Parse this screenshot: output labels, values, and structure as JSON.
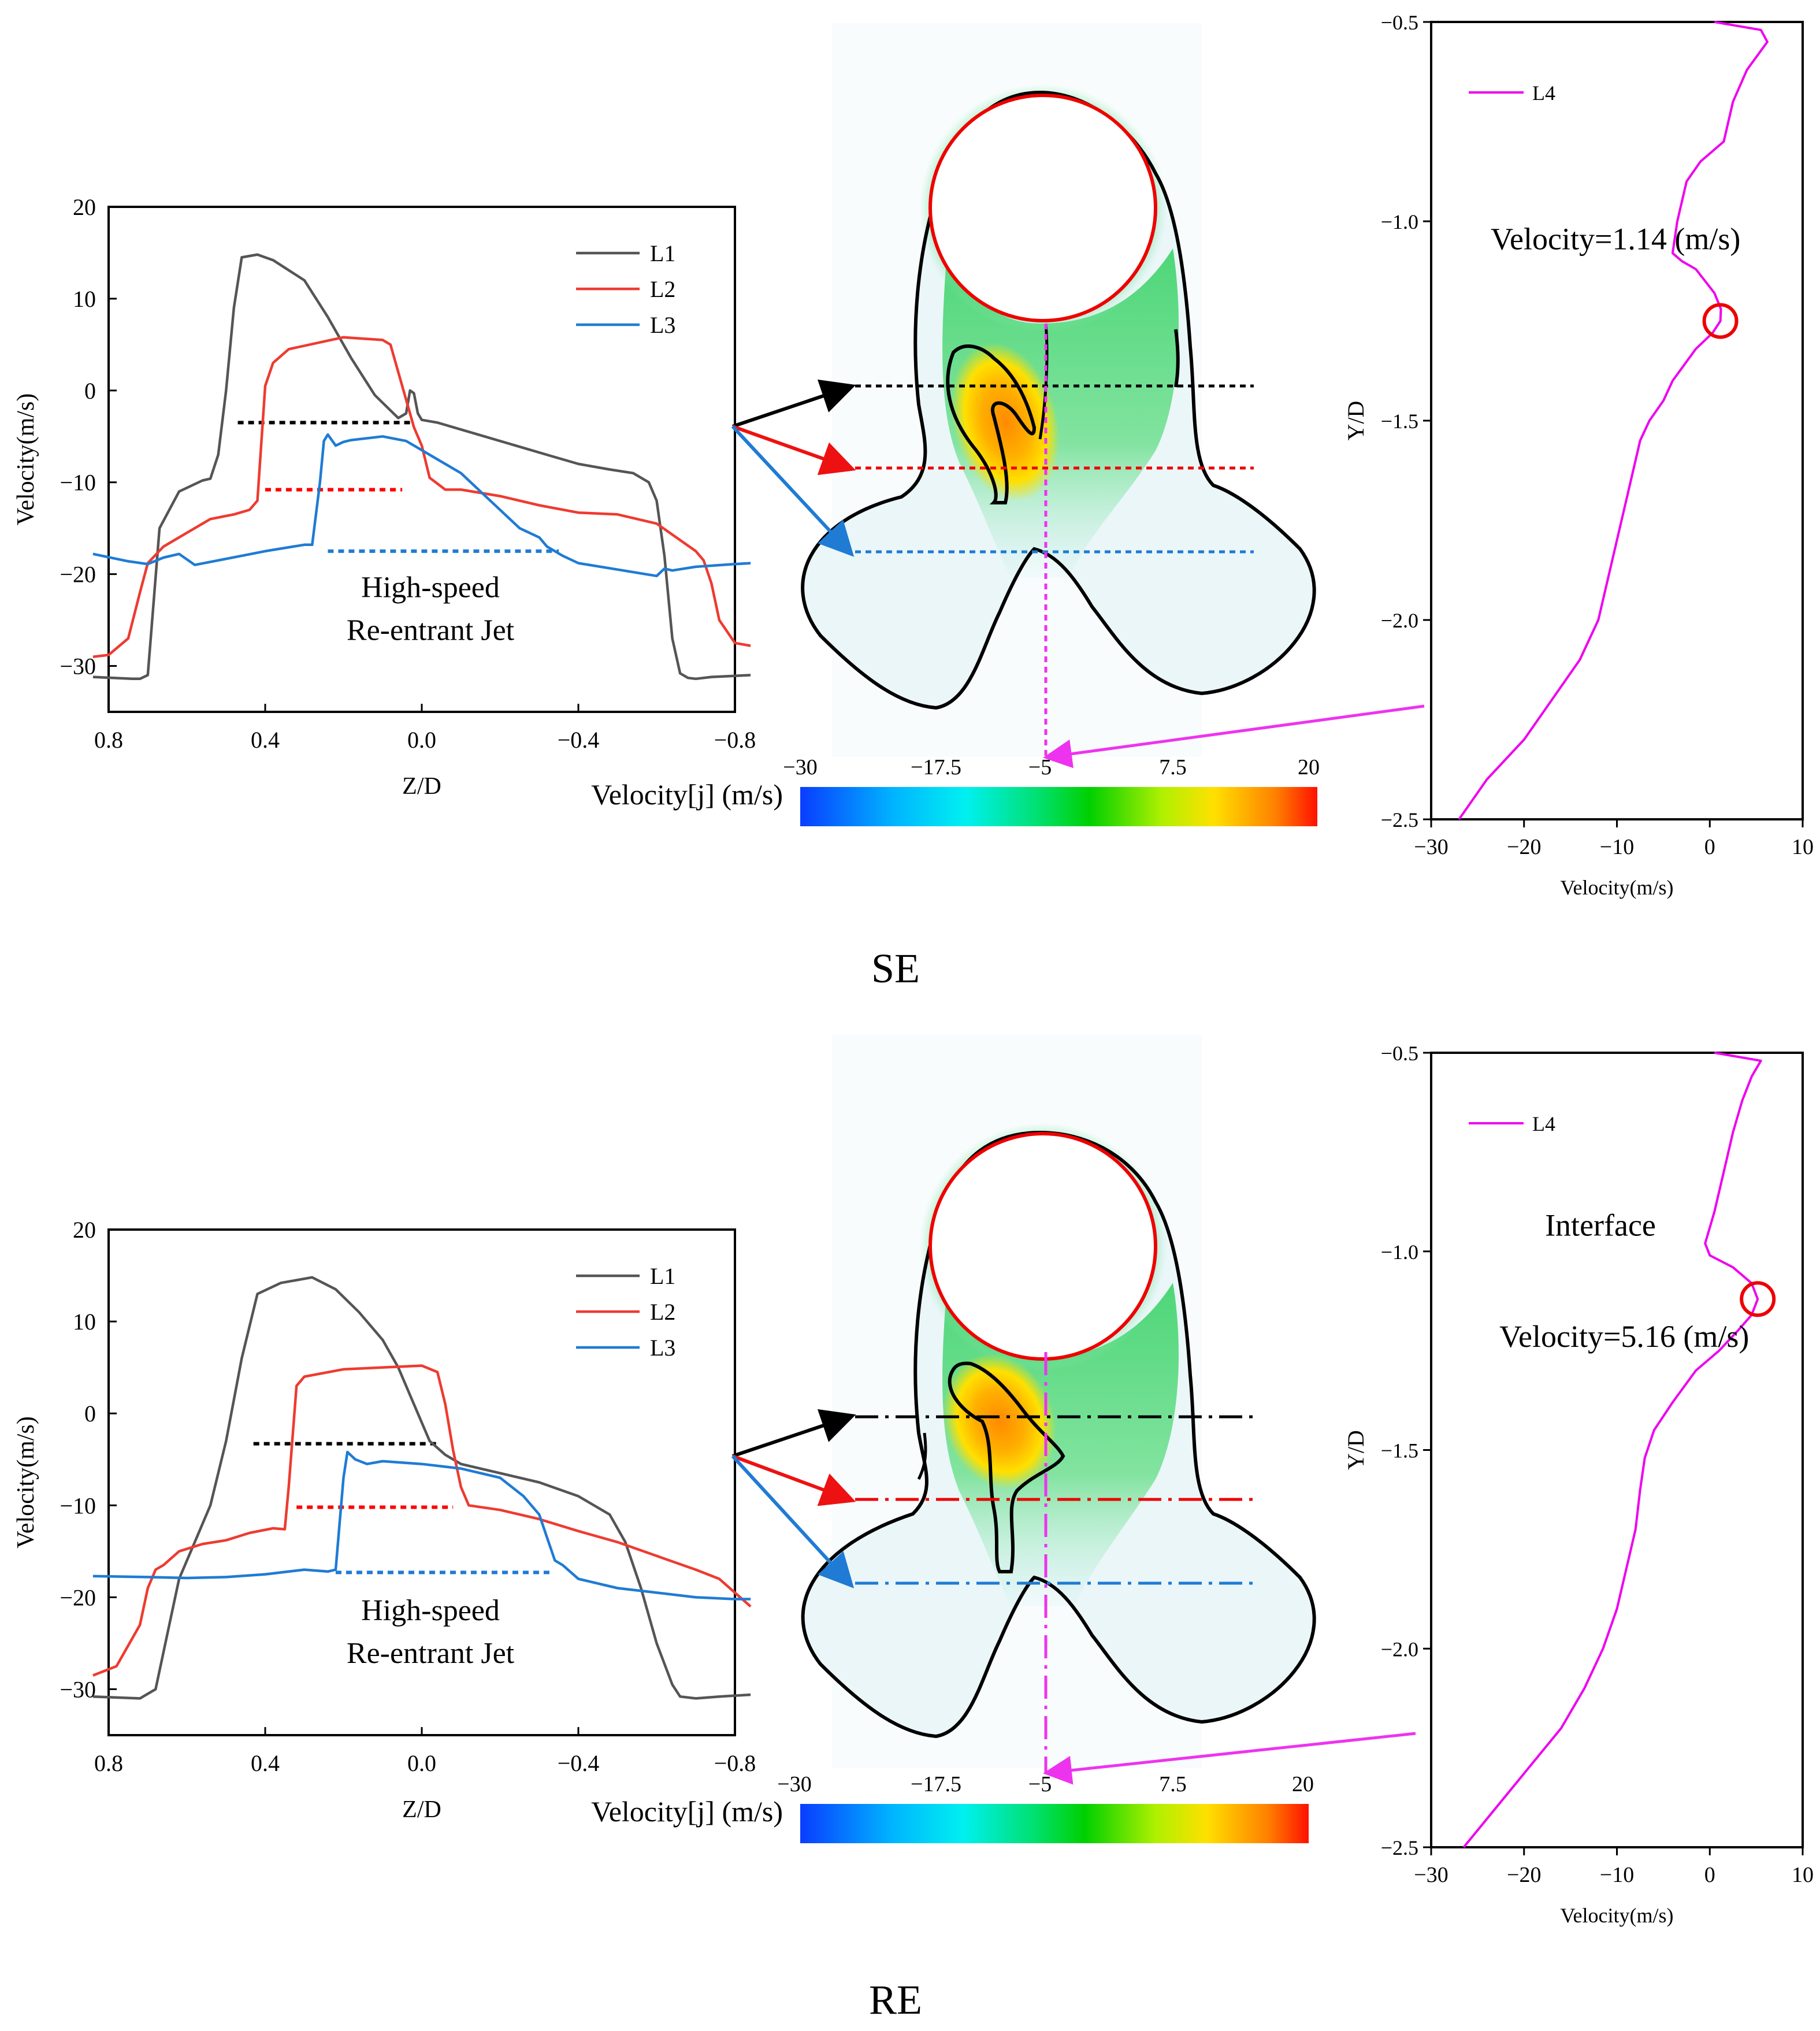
{
  "panels": [
    {
      "label": "SE",
      "left_chart": {
        "type": "line",
        "xlabel": "Z/D",
        "ylabel": "Velocity(m/s)",
        "xlim": [
          0.8,
          -0.8
        ],
        "ylim": [
          -35,
          20
        ],
        "xticks": [
          0.8,
          0.4,
          0.0,
          -0.4,
          -0.8
        ],
        "xtick_labels": [
          "0.8",
          "0.4",
          "0.0",
          "−0.4",
          "−0.8"
        ],
        "yticks": [
          20,
          10,
          0,
          -10,
          -20,
          -30
        ],
        "ytick_labels": [
          "20",
          "10",
          "0",
          "−10",
          "−20",
          "−30"
        ],
        "annotation": [
          "High-speed",
          "Re-entrant  Jet"
        ],
        "legend": [
          "L1",
          "L2",
          "L3"
        ],
        "series": [
          {
            "name": "L1",
            "color": "#555555",
            "x": [
              0.84,
              0.74,
              0.72,
              0.7,
              0.67,
              0.62,
              0.56,
              0.54,
              0.52,
              0.5,
              0.48,
              0.46,
              0.42,
              0.38,
              0.3,
              0.24,
              0.18,
              0.12,
              0.06,
              0.04,
              0.03,
              0.02,
              0.01,
              0.0,
              -0.04,
              -0.12,
              -0.24,
              -0.32,
              -0.4,
              -0.48,
              -0.54,
              -0.58,
              -0.6,
              -0.62,
              -0.64,
              -0.66,
              -0.68,
              -0.7,
              -0.74,
              -0.84
            ],
            "y": [
              -31.2,
              -31.4,
              -31.4,
              -31.0,
              -15.0,
              -11.0,
              -9.8,
              -9.6,
              -7.0,
              0.0,
              9.0,
              14.5,
              14.8,
              14.2,
              12.0,
              8.0,
              3.5,
              -0.5,
              -3.0,
              -2.5,
              0.0,
              -0.3,
              -2.5,
              -3.2,
              -3.5,
              -4.5,
              -6.0,
              -7.0,
              -8.0,
              -8.6,
              -9.0,
              -10.0,
              -12.0,
              -18.0,
              -27.0,
              -30.8,
              -31.3,
              -31.4,
              -31.2,
              -31.0
            ]
          },
          {
            "name": "L2",
            "color": "#ee3b30",
            "x": [
              0.84,
              0.8,
              0.75,
              0.72,
              0.7,
              0.66,
              0.6,
              0.54,
              0.48,
              0.44,
              0.42,
              0.4,
              0.38,
              0.34,
              0.2,
              0.1,
              0.08,
              0.06,
              0.04,
              0.02,
              0.0,
              -0.02,
              -0.06,
              -0.1,
              -0.2,
              -0.3,
              -0.4,
              -0.5,
              -0.6,
              -0.7,
              -0.72,
              -0.74,
              -0.76,
              -0.8,
              -0.84
            ],
            "y": [
              -29.0,
              -28.8,
              -27.0,
              -22.0,
              -18.8,
              -17.0,
              -15.5,
              -14.0,
              -13.5,
              -13.0,
              -12.0,
              0.5,
              3.0,
              4.5,
              5.8,
              5.5,
              5.0,
              2.0,
              -1.0,
              -4.0,
              -6.0,
              -9.5,
              -10.8,
              -10.8,
              -11.5,
              -12.5,
              -13.3,
              -13.5,
              -14.5,
              -17.5,
              -18.5,
              -21.0,
              -25.0,
              -27.5,
              -27.8
            ]
          },
          {
            "name": "L3",
            "color": "#1f7bd4",
            "x": [
              0.84,
              0.75,
              0.7,
              0.66,
              0.62,
              0.58,
              0.52,
              0.4,
              0.3,
              0.28,
              0.26,
              0.25,
              0.24,
              0.22,
              0.2,
              0.18,
              0.1,
              0.04,
              0.0,
              -0.04,
              -0.1,
              -0.15,
              -0.2,
              -0.25,
              -0.3,
              -0.32,
              -0.34,
              -0.36,
              -0.4,
              -0.5,
              -0.6,
              -0.62,
              -0.64,
              -0.7,
              -0.8,
              -0.84
            ],
            "y": [
              -17.8,
              -18.6,
              -18.9,
              -18.2,
              -17.8,
              -19.0,
              -18.5,
              -17.5,
              -16.8,
              -16.8,
              -10.0,
              -5.5,
              -4.8,
              -6.0,
              -5.6,
              -5.4,
              -5.0,
              -5.5,
              -6.5,
              -7.5,
              -9.0,
              -11.0,
              -13.0,
              -15.0,
              -16.0,
              -17.0,
              -17.5,
              -18.0,
              -18.8,
              -19.5,
              -20.2,
              -19.4,
              -19.6,
              -19.2,
              -18.9,
              -18.8
            ]
          }
        ],
        "reference_lines": [
          {
            "color": "#000000",
            "x": [
              0.47,
              0.03
            ],
            "y": -3.5
          },
          {
            "color": "#ff0000",
            "x": [
              0.4,
              0.05
            ],
            "y": -10.8
          },
          {
            "color": "#1f7bd4",
            "x": [
              0.24,
              -0.35
            ],
            "y": -17.5
          }
        ]
      },
      "contour": {
        "colorbar_title": "Velocity[j] (m/s)",
        "colorbar_ticks": [
          "−30",
          "−17.5",
          "−5",
          "7.5",
          "20"
        ],
        "section_style": "dotted",
        "variant": "se"
      },
      "right_chart": {
        "type": "line",
        "xlabel": "Velocity(m/s)",
        "ylabel": "Y/D",
        "xlim": [
          -30,
          10
        ],
        "ylim": [
          -2.5,
          -0.5
        ],
        "xticks": [
          -30,
          -20,
          -10,
          0,
          10
        ],
        "xtick_labels": [
          "−30",
          "−20",
          "−10",
          "0",
          "10"
        ],
        "yticks": [
          -0.5,
          -1.0,
          -1.5,
          -2.0,
          -2.5
        ],
        "ytick_labels": [
          "−0.5",
          "−1.0",
          "−1.5",
          "−2.0",
          "−2.5"
        ],
        "legend": [
          "L4"
        ],
        "annotations": [
          "Velocity=1.14 (m/s)"
        ],
        "marker": {
          "x": 1.14,
          "y": -1.25
        },
        "series": [
          {
            "name": "L4",
            "color": "#ee00ee",
            "y": [
              -0.5,
              -0.52,
              -0.55,
              -0.62,
              -0.7,
              -0.8,
              -0.85,
              -0.9,
              -1.0,
              -1.08,
              -1.1,
              -1.12,
              -1.18,
              -1.22,
              -1.25,
              -1.28,
              -1.32,
              -1.4,
              -1.45,
              -1.5,
              -1.55,
              -1.6,
              -1.7,
              -1.8,
              -1.9,
              -2.0,
              -2.1,
              -2.2,
              -2.3,
              -2.4,
              -2.5
            ],
            "x": [
              0.5,
              5.5,
              6.2,
              4.0,
              2.5,
              1.5,
              -1.0,
              -2.5,
              -3.5,
              -4.0,
              -3.0,
              -1.5,
              0.5,
              1.2,
              1.14,
              0.3,
              -1.5,
              -4.0,
              -5.0,
              -6.5,
              -7.5,
              -8.0,
              -9.0,
              -10.0,
              -11.0,
              -12.0,
              -14.0,
              -17.0,
              -20.0,
              -24.0,
              -27.0
            ]
          }
        ]
      }
    },
    {
      "label": "RE",
      "left_chart": {
        "type": "line",
        "xlabel": "Z/D",
        "ylabel": "Velocity(m/s)",
        "xlim": [
          0.8,
          -0.8
        ],
        "ylim": [
          -35,
          20
        ],
        "xticks": [
          0.8,
          0.4,
          0.0,
          -0.4,
          -0.8
        ],
        "xtick_labels": [
          "0.8",
          "0.4",
          "0.0",
          "−0.4",
          "−0.8"
        ],
        "yticks": [
          20,
          10,
          0,
          -10,
          -20,
          -30
        ],
        "ytick_labels": [
          "20",
          "10",
          "0",
          "−10",
          "−20",
          "−30"
        ],
        "annotation": [
          "High-speed",
          "Re-entrant  Jet"
        ],
        "legend": [
          "L1",
          "L2",
          "L3"
        ],
        "series": [
          {
            "name": "L1",
            "color": "#555555",
            "x": [
              0.84,
              0.72,
              0.68,
              0.64,
              0.62,
              0.58,
              0.54,
              0.5,
              0.46,
              0.42,
              0.36,
              0.28,
              0.22,
              0.16,
              0.1,
              0.06,
              0.02,
              -0.02,
              -0.06,
              -0.1,
              -0.2,
              -0.3,
              -0.4,
              -0.48,
              -0.52,
              -0.56,
              -0.6,
              -0.64,
              -0.66,
              -0.7,
              -0.76,
              -0.84
            ],
            "y": [
              -30.8,
              -31.0,
              -30.0,
              -22.0,
              -18.0,
              -14.0,
              -10.0,
              -3.0,
              6.0,
              13.0,
              14.2,
              14.8,
              13.5,
              11.0,
              8.0,
              5.0,
              1.0,
              -3.0,
              -4.5,
              -5.5,
              -6.5,
              -7.5,
              -9.0,
              -11.0,
              -14.0,
              -19.0,
              -25.0,
              -29.5,
              -30.8,
              -31.0,
              -30.8,
              -30.6
            ]
          },
          {
            "name": "L2",
            "color": "#ee3b30",
            "x": [
              0.84,
              0.78,
              0.72,
              0.7,
              0.68,
              0.66,
              0.62,
              0.56,
              0.5,
              0.44,
              0.38,
              0.35,
              0.34,
              0.32,
              0.3,
              0.2,
              0.1,
              0.0,
              -0.04,
              -0.06,
              -0.08,
              -0.1,
              -0.12,
              -0.2,
              -0.3,
              -0.4,
              -0.5,
              -0.6,
              -0.7,
              -0.76,
              -0.8,
              -0.84
            ],
            "y": [
              -28.5,
              -27.5,
              -23.0,
              -19.0,
              -17.0,
              -16.5,
              -15.0,
              -14.2,
              -13.8,
              -13.0,
              -12.5,
              -12.6,
              -8.0,
              3.0,
              4.0,
              4.8,
              5.0,
              5.2,
              4.5,
              1.0,
              -4.0,
              -8.0,
              -10.0,
              -10.5,
              -11.5,
              -12.8,
              -14.0,
              -15.5,
              -17.0,
              -18.0,
              -19.5,
              -21.0
            ]
          },
          {
            "name": "L3",
            "color": "#1f7bd4",
            "x": [
              0.84,
              0.7,
              0.6,
              0.5,
              0.4,
              0.3,
              0.24,
              0.22,
              0.21,
              0.2,
              0.19,
              0.17,
              0.14,
              0.1,
              0.0,
              -0.1,
              -0.2,
              -0.26,
              -0.3,
              -0.32,
              -0.34,
              -0.36,
              -0.4,
              -0.5,
              -0.6,
              -0.7,
              -0.8,
              -0.84
            ],
            "y": [
              -17.7,
              -17.8,
              -17.9,
              -17.8,
              -17.5,
              -17.0,
              -17.2,
              -17.0,
              -12.0,
              -7.0,
              -4.2,
              -5.0,
              -5.5,
              -5.2,
              -5.5,
              -6.0,
              -7.0,
              -9.0,
              -11.0,
              -13.5,
              -16.0,
              -16.5,
              -18.0,
              -19.0,
              -19.5,
              -20.0,
              -20.2,
              -20.2
            ]
          }
        ],
        "reference_lines": [
          {
            "color": "#000000",
            "x": [
              0.43,
              -0.04
            ],
            "y": -3.3
          },
          {
            "color": "#ff0000",
            "x": [
              0.32,
              -0.08
            ],
            "y": -10.2
          },
          {
            "color": "#1f7bd4",
            "x": [
              0.22,
              -0.33
            ],
            "y": -17.3
          }
        ]
      },
      "contour": {
        "colorbar_title": "Velocity[j] (m/s)",
        "colorbar_ticks": [
          "−30",
          "−17.5",
          "−5",
          "7.5",
          "20"
        ],
        "section_style": "dashdot",
        "variant": "re"
      },
      "right_chart": {
        "type": "line",
        "xlabel": "Velocity(m/s)",
        "ylabel": "Y/D",
        "xlim": [
          -30,
          10
        ],
        "ylim": [
          -2.5,
          -0.5
        ],
        "xticks": [
          -30,
          -20,
          -10,
          0,
          10
        ],
        "xtick_labels": [
          "−30",
          "−20",
          "−10",
          "0",
          "10"
        ],
        "yticks": [
          -0.5,
          -1.0,
          -1.5,
          -2.0,
          -2.5
        ],
        "ytick_labels": [
          "−0.5",
          "−1.0",
          "−1.5",
          "−2.0",
          "−2.5"
        ],
        "legend": [
          "L4"
        ],
        "annotations": [
          "Interface",
          "Velocity=5.16 (m/s)"
        ],
        "marker": {
          "x": 5.16,
          "y": -1.12
        },
        "series": [
          {
            "name": "L4",
            "color": "#ee00ee",
            "y": [
              -0.5,
              -0.52,
              -0.56,
              -0.62,
              -0.7,
              -0.8,
              -0.9,
              -0.98,
              -1.01,
              -1.04,
              -1.08,
              -1.12,
              -1.16,
              -1.2,
              -1.25,
              -1.3,
              -1.38,
              -1.45,
              -1.52,
              -1.6,
              -1.7,
              -1.8,
              -1.9,
              -2.0,
              -2.1,
              -2.2,
              -2.3,
              -2.4,
              -2.5
            ],
            "x": [
              0.5,
              5.5,
              4.5,
              3.5,
              2.5,
              1.5,
              0.5,
              -0.5,
              0.0,
              2.5,
              4.5,
              5.16,
              4.5,
              3.0,
              1.0,
              -1.5,
              -4.0,
              -6.0,
              -7.0,
              -7.5,
              -8.0,
              -9.0,
              -10.0,
              -11.5,
              -13.5,
              -16.0,
              -19.5,
              -23.0,
              -26.5
            ]
          }
        ]
      }
    }
  ]
}
